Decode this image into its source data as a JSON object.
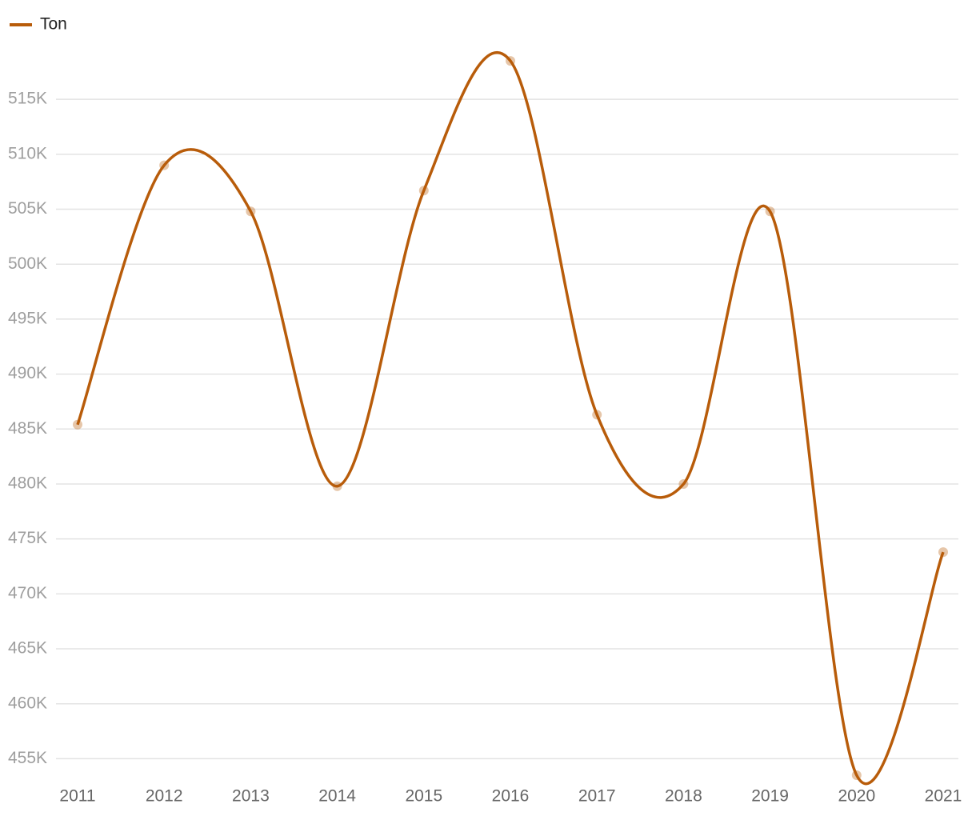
{
  "chart_data": {
    "type": "line",
    "categories": [
      "2011",
      "2012",
      "2013",
      "2014",
      "2015",
      "2016",
      "2017",
      "2018",
      "2019",
      "2020",
      "2021"
    ],
    "series": [
      {
        "name": "Ton",
        "color": "#b85c0a",
        "values": [
          485400,
          509000,
          504800,
          479800,
          506700,
          518500,
          486300,
          480000,
          504800,
          453500,
          473800
        ]
      }
    ],
    "ylim": [
      452700,
      520400
    ],
    "yticks": [
      {
        "value": 455000,
        "label": "455K"
      },
      {
        "value": 460000,
        "label": "460K"
      },
      {
        "value": 465000,
        "label": "465K"
      },
      {
        "value": 470000,
        "label": "470K"
      },
      {
        "value": 475000,
        "label": "475K"
      },
      {
        "value": 480000,
        "label": "480K"
      },
      {
        "value": 485000,
        "label": "485K"
      },
      {
        "value": 490000,
        "label": "490K"
      },
      {
        "value": 495000,
        "label": "495K"
      },
      {
        "value": 500000,
        "label": "500K"
      },
      {
        "value": 505000,
        "label": "505K"
      },
      {
        "value": 510000,
        "label": "510K"
      },
      {
        "value": 515000,
        "label": "515K"
      }
    ],
    "grid": true,
    "legend": "top-left",
    "smooth": true
  }
}
